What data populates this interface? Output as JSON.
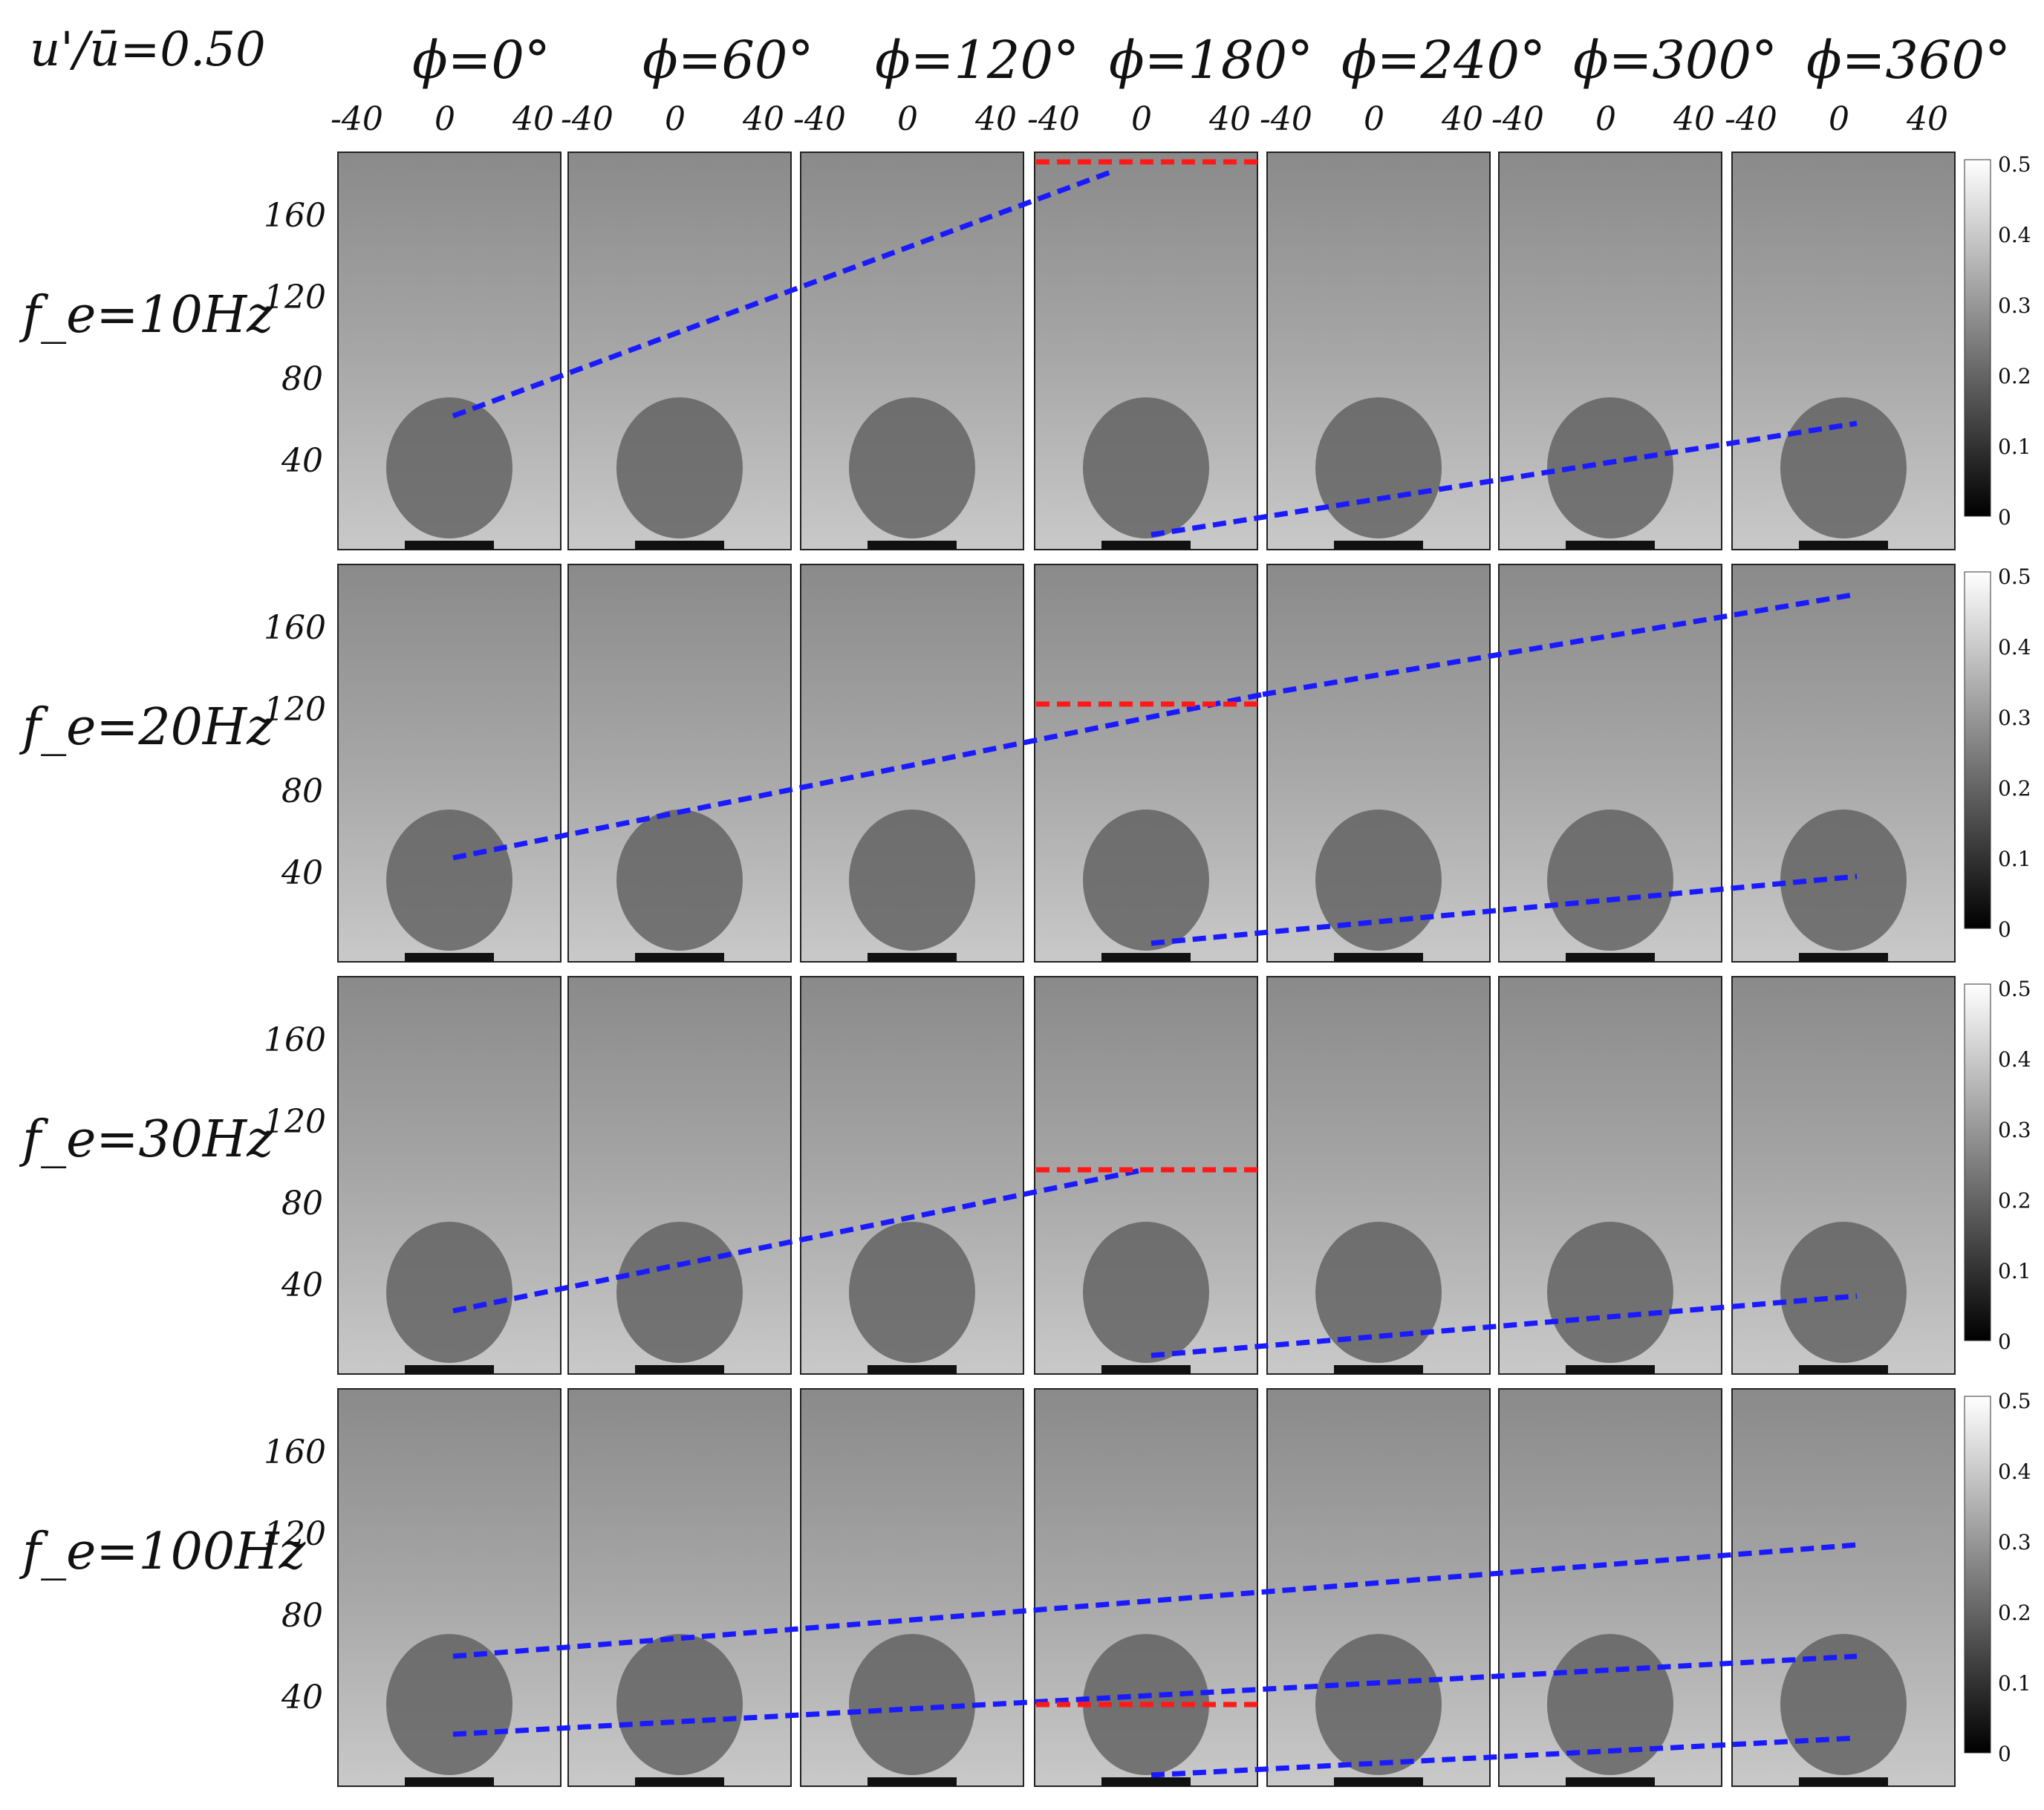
{
  "title": "u'/ū=0.50",
  "phases": [
    "ϕ=0°",
    "ϕ=60°",
    "ϕ=120°",
    "ϕ=180°",
    "ϕ=240°",
    "ϕ=300°",
    "ϕ=360°"
  ],
  "x_ticks": [
    "-40",
    "0",
    "40"
  ],
  "y_ticks": [
    "160",
    "120",
    "80",
    "40"
  ],
  "rows": [
    {
      "label": "f_e=10Hz"
    },
    {
      "label": "f_e=20Hz"
    },
    {
      "label": "f_e=30Hz"
    },
    {
      "label": "f_e=100Hz"
    }
  ],
  "colorbar_ticks": [
    "0.5",
    "0.4",
    "0.3",
    "0.2",
    "0.1",
    "0"
  ],
  "colors": {
    "tracking_line": "#1a1aff",
    "reference_line": "#ff1a1a"
  }
}
